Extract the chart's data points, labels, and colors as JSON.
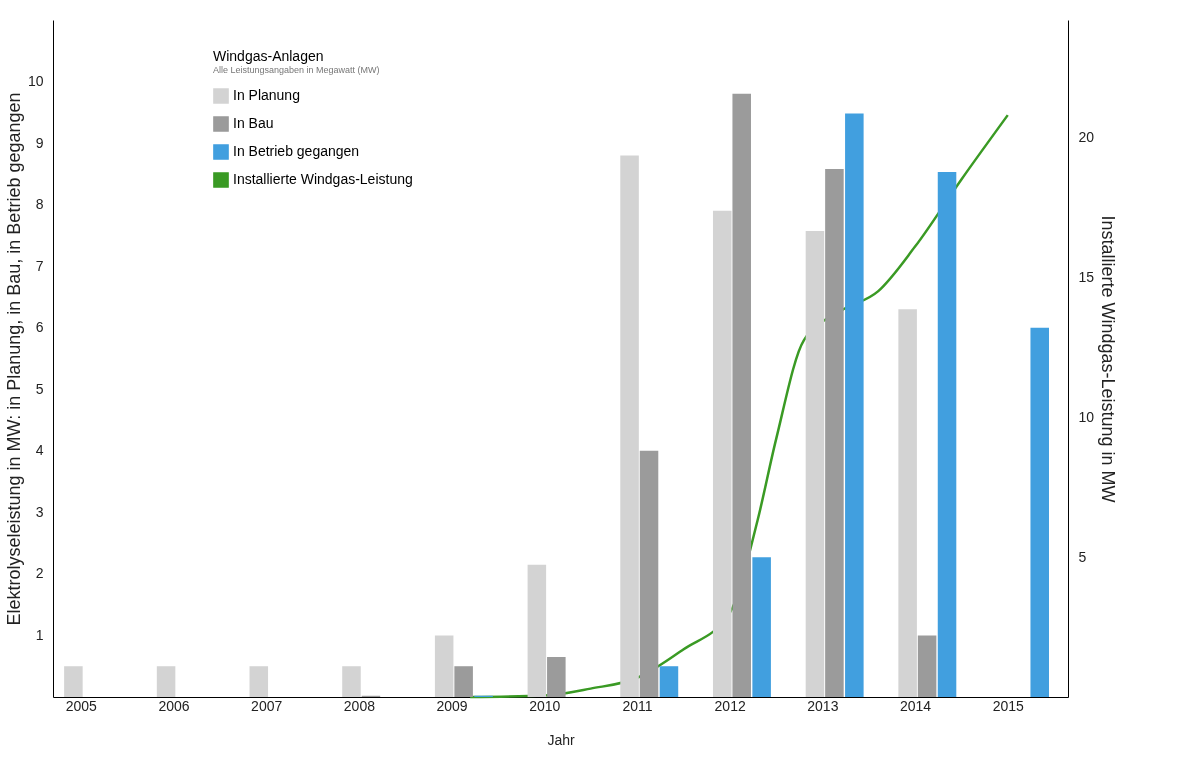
{
  "chart_data": {
    "type": "bar",
    "legend_title": "Windgas-Anlagen",
    "xlabel": "Jahr",
    "ylabel": "Elektrolyseleistung in MW: in Planung, in Bau, in Betrieb gegangen",
    "y2label": "Installierte Windgas-Leistung in MW",
    "annotations": [
      "Alle Leistungsangaben in Megawatt (MW)"
    ],
    "x": [
      2005,
      2006,
      2007,
      2008,
      2009,
      2010,
      2011,
      2012,
      2013,
      2014,
      2015
    ],
    "xlim": [
      2004.7,
      2015.65
    ],
    "xticks": [
      2005,
      2006,
      2007,
      2008,
      2009,
      2010,
      2011,
      2012,
      2013,
      2014,
      2015
    ],
    "ylim": [
      0,
      11
    ],
    "yticks": [
      1,
      2,
      3,
      4,
      5,
      6,
      7,
      8,
      9,
      10
    ],
    "y2lim": [
      0,
      24.2
    ],
    "y2ticks": [
      5,
      10,
      15,
      20
    ],
    "grid": false,
    "legend": "top left",
    "series": [
      {
        "name": "In Planung",
        "color": "#d3d3d3",
        "values": [
          0.5,
          0.5,
          0.5,
          0.5,
          1.0,
          2.15,
          8.8,
          7.9,
          7.57,
          6.3,
          0
        ]
      },
      {
        "name": "In Bau",
        "color": "#9b9b9b",
        "values": [
          0,
          0,
          0,
          0.02,
          0.5,
          0.65,
          4.0,
          9.8,
          8.58,
          1.0,
          0
        ]
      },
      {
        "name": "In Betrieb gegangen",
        "color": "#419fdf",
        "values": [
          0,
          0,
          0,
          0,
          0.02,
          0,
          0.5,
          2.27,
          9.48,
          8.53,
          6.0
        ]
      },
      {
        "name": "Installierte Windgas-Leistung",
        "type": "line",
        "axis": "y2",
        "color": "#3a9a24",
        "x": [
          2009.2,
          2010,
          2010.5,
          2011,
          2011.5,
          2012,
          2012.3,
          2012.5,
          2012.8,
          2013.2,
          2013.6,
          2014,
          2014.5,
          2015
        ],
        "values": [
          0,
          0.05,
          0.3,
          0.68,
          1.7,
          3.0,
          6.3,
          9.2,
          12.75,
          13.8,
          14.5,
          16.1,
          18.5,
          20.8
        ]
      }
    ]
  }
}
